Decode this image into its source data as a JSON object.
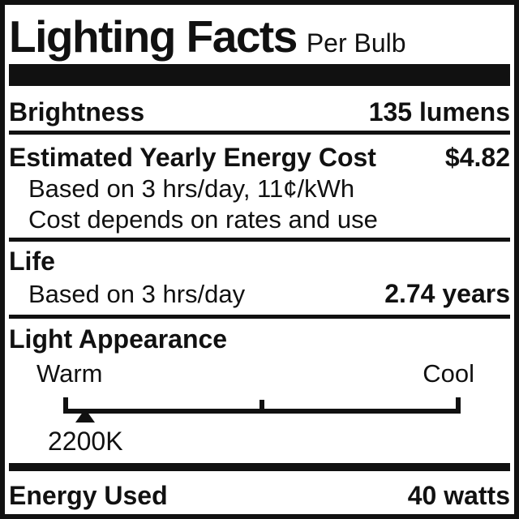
{
  "header": {
    "title": "Lighting Facts",
    "subtitle": "Per Bulb"
  },
  "brightness": {
    "label": "Brightness",
    "value": "135 lumens"
  },
  "energy_cost": {
    "label": "Estimated Yearly Energy Cost",
    "value": "$4.82",
    "notes": [
      "Based on 3 hrs/day, 11¢/kWh",
      "Cost depends on rates and use"
    ]
  },
  "life": {
    "label": "Life",
    "basis": "Based on 3 hrs/day",
    "value": "2.74 years"
  },
  "light_appearance": {
    "label": "Light Appearance",
    "scale": {
      "left_label": "Warm",
      "right_label": "Cool",
      "marker_value": "2200K",
      "marker_position_pct": 5.5
    }
  },
  "energy_used": {
    "label": "Energy Used",
    "value": "40 watts"
  },
  "colors": {
    "ink": "#111111",
    "background": "#ffffff"
  }
}
